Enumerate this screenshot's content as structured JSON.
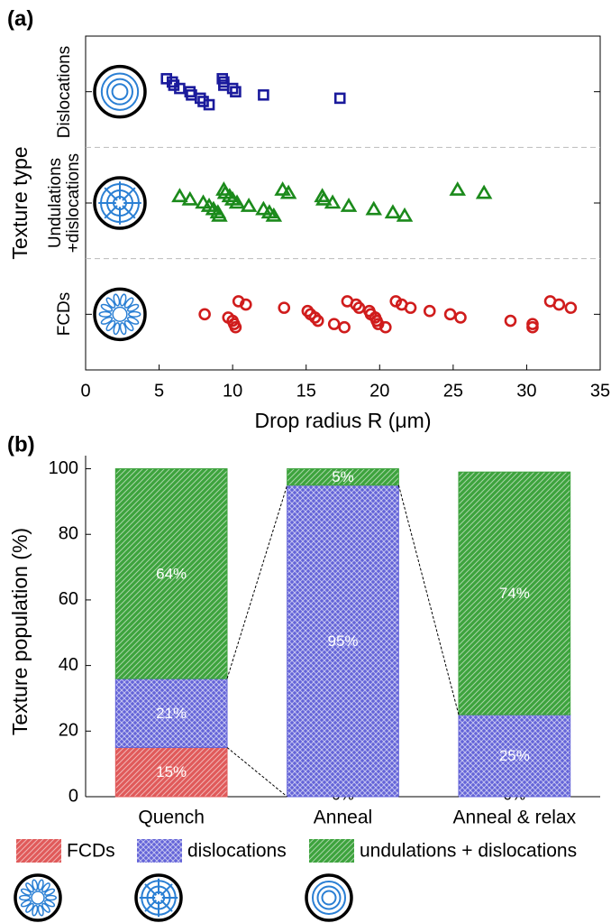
{
  "chart_data": [
    {
      "type": "strip",
      "title": "(a)",
      "ylabel": "Texture type",
      "xlabel": "Drop radius R (μm)",
      "categories": [
        "Dislocations",
        "Undulations\n+dislocations",
        "FCDs"
      ],
      "xlim": [
        0,
        35
      ],
      "xticks": [
        0,
        5,
        10,
        15,
        20,
        25,
        30,
        35
      ],
      "series": [
        {
          "marker": "square",
          "color": "#1a1a9c",
          "x": [
            5.5,
            5.9,
            6.0,
            6.4,
            7.1,
            7.2,
            7.8,
            8.0,
            8.4,
            9.3,
            9.4,
            9.4,
            10.0,
            10.2,
            12.1,
            17.3
          ]
        },
        {
          "marker": "triangle",
          "color": "#1b8a1b",
          "x": [
            6.4,
            7.1,
            8.0,
            8.4,
            8.7,
            9.0,
            9.1,
            9.4,
            9.5,
            9.8,
            10.0,
            10.3,
            11.1,
            12.1,
            12.5,
            12.8,
            13.4,
            13.8,
            16.1,
            16.2,
            16.8,
            17.9,
            19.6,
            20.9,
            21.7,
            25.3,
            27.1
          ]
        },
        {
          "marker": "circle",
          "color": "#d01c1c",
          "x": [
            8.1,
            9.7,
            10.0,
            10.1,
            10.2,
            10.4,
            10.9,
            13.5,
            15.1,
            15.3,
            15.6,
            15.8,
            16.9,
            17.6,
            17.8,
            18.4,
            18.6,
            19.3,
            19.4,
            19.7,
            19.8,
            19.9,
            20.4,
            21.1,
            21.5,
            22.1,
            23.4,
            24.8,
            25.5,
            28.9,
            30.4,
            30.4,
            31.6,
            32.2,
            33.0
          ]
        }
      ]
    },
    {
      "type": "stacked-bar",
      "title": "(b)",
      "ylabel": "Texture population (%)",
      "categories": [
        "Quench",
        "Anneal",
        "Anneal & relax"
      ],
      "ylim": [
        0,
        104
      ],
      "yticks": [
        0,
        20,
        40,
        60,
        80,
        100
      ],
      "series": [
        {
          "name": "FCDs",
          "color": "#e05a5a",
          "values": [
            15,
            0,
            0
          ],
          "value_labels": [
            "15%",
            "0%",
            "0%"
          ]
        },
        {
          "name": "dislocations",
          "color": "#6464d8",
          "values": [
            21,
            95,
            25
          ],
          "value_labels": [
            "21%",
            "95%",
            "25%"
          ]
        },
        {
          "name": "undulations + dislocations",
          "color": "#3da33d",
          "values": [
            64,
            5,
            74
          ],
          "value_labels": [
            "64%",
            "5%",
            "74%"
          ]
        }
      ]
    }
  ]
}
